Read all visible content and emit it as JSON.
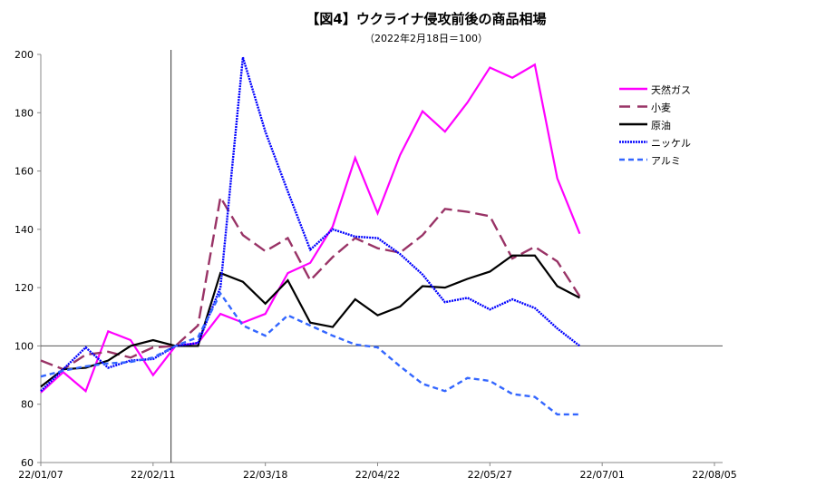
{
  "chart_data": {
    "type": "line",
    "title": "【図4】ウクライナ侵攻前後の商品相場",
    "subtitle": "（2022年2月18日＝100）",
    "xlabel": "",
    "ylabel": "",
    "ylim": [
      60,
      200
    ],
    "yticks": [
      "60",
      "80",
      "100",
      "120",
      "140",
      "160",
      "180",
      "200"
    ],
    "x_start": "22/01/07",
    "x_interval": "weekly",
    "x_week_range": [
      0,
      30
    ],
    "xticks": [
      {
        "week": 0,
        "label": "22/01/07"
      },
      {
        "week": 5,
        "label": "22/02/11"
      },
      {
        "week": 10,
        "label": "22/03/18"
      },
      {
        "week": 15,
        "label": "22/04/22"
      },
      {
        "week": 20,
        "label": "22/05/27"
      },
      {
        "week": 25,
        "label": "22/07/01"
      },
      {
        "week": 30,
        "label": "22/08/05"
      }
    ],
    "reference_line_y": 100,
    "reference_vline_week": 5.8,
    "grid": false,
    "legend_position": "right",
    "series": [
      {
        "name": "天然ガス",
        "color": "#ff00ff",
        "style": "solid",
        "values": [
          84,
          91,
          84.5,
          105,
          102,
          90,
          100,
          101,
          111,
          108,
          111,
          125,
          128.5,
          141,
          164.5,
          145.5,
          165.5,
          180.5,
          173.5,
          183.5,
          195.5,
          192,
          196.5,
          157.5,
          138.5
        ]
      },
      {
        "name": "小麦",
        "color": "#993366",
        "style": "longdash",
        "values": [
          95,
          92,
          97,
          98,
          96,
          99.5,
          100,
          107,
          151,
          138,
          132.5,
          137,
          122.5,
          130.5,
          137,
          133.5,
          132,
          138,
          147,
          146,
          144.5,
          130,
          134,
          129,
          117
        ]
      },
      {
        "name": "原油",
        "color": "#000000",
        "style": "solid",
        "values": [
          86,
          92,
          92.5,
          95,
          100,
          102,
          100,
          100,
          125,
          122,
          114.5,
          122.5,
          108,
          106.5,
          116,
          110.5,
          113.5,
          120.5,
          120,
          123,
          125.5,
          131,
          131,
          120.5,
          116.5
        ]
      },
      {
        "name": "ニッケル",
        "color": "#0000ff",
        "style": "dotted",
        "values": [
          84.5,
          92,
          99.5,
          92.5,
          95,
          95.5,
          100,
          101,
          120,
          199,
          173.5,
          153,
          133,
          140,
          137.5,
          137,
          131.5,
          124.5,
          115,
          116.5,
          112.5,
          116,
          113,
          106,
          100
        ]
      },
      {
        "name": "アルミ",
        "color": "#3366ff",
        "style": "dash",
        "values": [
          89.5,
          91.5,
          93,
          94,
          94.5,
          96,
          100,
          103,
          118,
          107,
          103.5,
          110.5,
          107,
          103.5,
          100.5,
          99.5,
          93,
          87,
          84.5,
          89,
          88,
          83.5,
          82.5,
          76.5,
          76.5
        ]
      }
    ]
  }
}
